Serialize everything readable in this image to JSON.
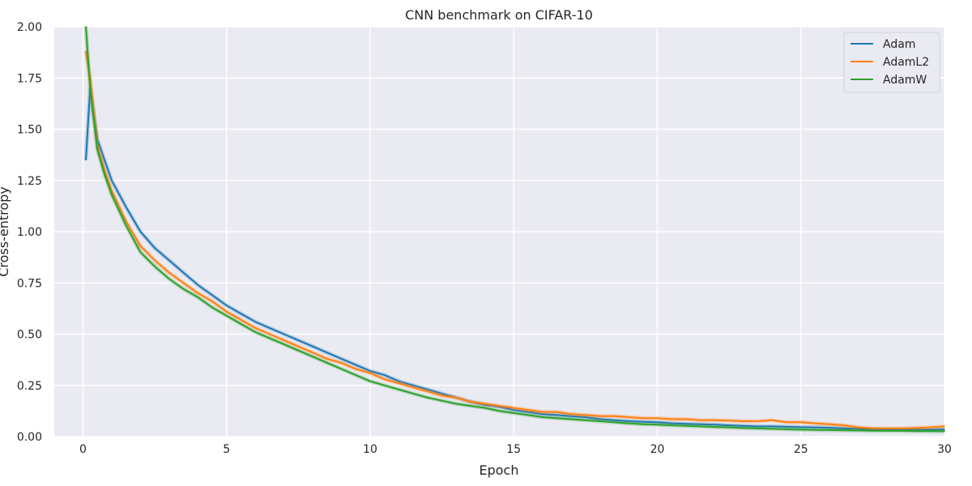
{
  "chart_data": {
    "type": "line",
    "title": "CNN benchmark on CIFAR-10",
    "xlabel": "Epoch",
    "ylabel": "Cross-entropy",
    "xlim": [
      -1,
      30
    ],
    "ylim": [
      0,
      2.0
    ],
    "xticks": [
      "0",
      "5",
      "10",
      "15",
      "20",
      "25",
      "30"
    ],
    "yticks": [
      "0.00",
      "0.25",
      "0.50",
      "0.75",
      "1.00",
      "1.25",
      "1.50",
      "1.75",
      "2.00"
    ],
    "grid": true,
    "legend_position": "top-right",
    "background": "#eaeaf2",
    "series": [
      {
        "name": "Adam",
        "color": "#1f77b4",
        "x": [
          0.1,
          0.25,
          0.5,
          0.75,
          1,
          1.5,
          2,
          2.5,
          3,
          3.5,
          4,
          4.5,
          5,
          5.5,
          6,
          6.5,
          7,
          7.5,
          8,
          8.5,
          9,
          9.5,
          10,
          10.5,
          11,
          11.5,
          12,
          12.5,
          13,
          13.5,
          14,
          14.5,
          15,
          15.5,
          16,
          16.5,
          17,
          17.5,
          18,
          18.5,
          19,
          19.5,
          20,
          20.5,
          21,
          21.5,
          22,
          22.5,
          23,
          23.5,
          24,
          24.5,
          25,
          25.5,
          26,
          26.5,
          27,
          27.5,
          28,
          28.5,
          29,
          29.5,
          30
        ],
        "values": [
          1.35,
          1.7,
          1.45,
          1.35,
          1.25,
          1.12,
          1.0,
          0.92,
          0.86,
          0.8,
          0.74,
          0.69,
          0.64,
          0.6,
          0.56,
          0.53,
          0.5,
          0.47,
          0.44,
          0.41,
          0.38,
          0.35,
          0.32,
          0.3,
          0.27,
          0.25,
          0.23,
          0.21,
          0.19,
          0.17,
          0.155,
          0.145,
          0.13,
          0.12,
          0.11,
          0.105,
          0.1,
          0.095,
          0.085,
          0.08,
          0.075,
          0.072,
          0.07,
          0.065,
          0.062,
          0.06,
          0.058,
          0.055,
          0.052,
          0.05,
          0.05,
          0.048,
          0.046,
          0.045,
          0.043,
          0.04,
          0.038,
          0.036,
          0.035,
          0.035,
          0.034,
          0.034,
          0.035
        ]
      },
      {
        "name": "AdamL2",
        "color": "#ff7f0e",
        "x": [
          0.1,
          0.25,
          0.5,
          0.75,
          1,
          1.5,
          2,
          2.5,
          3,
          3.5,
          4,
          4.5,
          5,
          5.5,
          6,
          6.5,
          7,
          7.5,
          8,
          8.5,
          9,
          9.5,
          10,
          10.5,
          11,
          11.5,
          12,
          12.5,
          13,
          13.5,
          14,
          14.5,
          15,
          15.5,
          16,
          16.5,
          17,
          17.5,
          18,
          18.5,
          19,
          19.5,
          20,
          20.5,
          21,
          21.5,
          22,
          22.5,
          23,
          23.5,
          24,
          24.5,
          25,
          25.5,
          26,
          26.5,
          27,
          27.5,
          28,
          28.5,
          29,
          29.5,
          30
        ],
        "values": [
          1.88,
          1.75,
          1.42,
          1.3,
          1.2,
          1.05,
          0.93,
          0.86,
          0.8,
          0.75,
          0.7,
          0.66,
          0.61,
          0.57,
          0.53,
          0.5,
          0.47,
          0.44,
          0.41,
          0.38,
          0.36,
          0.33,
          0.31,
          0.28,
          0.26,
          0.24,
          0.22,
          0.2,
          0.19,
          0.17,
          0.16,
          0.15,
          0.14,
          0.13,
          0.12,
          0.12,
          0.11,
          0.105,
          0.1,
          0.1,
          0.095,
          0.09,
          0.09,
          0.085,
          0.085,
          0.08,
          0.08,
          0.078,
          0.075,
          0.075,
          0.08,
          0.07,
          0.07,
          0.065,
          0.06,
          0.055,
          0.045,
          0.04,
          0.04,
          0.04,
          0.042,
          0.045,
          0.05
        ]
      },
      {
        "name": "AdamW",
        "color": "#2ca02c",
        "x": [
          0.1,
          0.25,
          0.5,
          0.75,
          1,
          1.5,
          2,
          2.5,
          3,
          3.5,
          4,
          4.5,
          5,
          5.5,
          6,
          6.5,
          7,
          7.5,
          8,
          8.5,
          9,
          9.5,
          10,
          10.5,
          11,
          11.5,
          12,
          12.5,
          13,
          13.5,
          14,
          14.5,
          15,
          15.5,
          16,
          16.5,
          17,
          17.5,
          18,
          18.5,
          19,
          19.5,
          20,
          20.5,
          21,
          21.5,
          22,
          22.5,
          23,
          23.5,
          24,
          24.5,
          25,
          25.5,
          26,
          26.5,
          27,
          27.5,
          28,
          28.5,
          29,
          29.5,
          30
        ],
        "values": [
          2.0,
          1.7,
          1.4,
          1.28,
          1.18,
          1.03,
          0.9,
          0.83,
          0.77,
          0.72,
          0.68,
          0.63,
          0.59,
          0.55,
          0.51,
          0.48,
          0.45,
          0.42,
          0.39,
          0.36,
          0.33,
          0.3,
          0.27,
          0.25,
          0.23,
          0.21,
          0.19,
          0.175,
          0.16,
          0.15,
          0.14,
          0.125,
          0.115,
          0.105,
          0.095,
          0.09,
          0.085,
          0.08,
          0.075,
          0.07,
          0.065,
          0.06,
          0.058,
          0.055,
          0.052,
          0.05,
          0.047,
          0.045,
          0.042,
          0.04,
          0.038,
          0.036,
          0.034,
          0.033,
          0.032,
          0.031,
          0.03,
          0.029,
          0.028,
          0.028,
          0.027,
          0.027,
          0.026
        ]
      }
    ]
  }
}
